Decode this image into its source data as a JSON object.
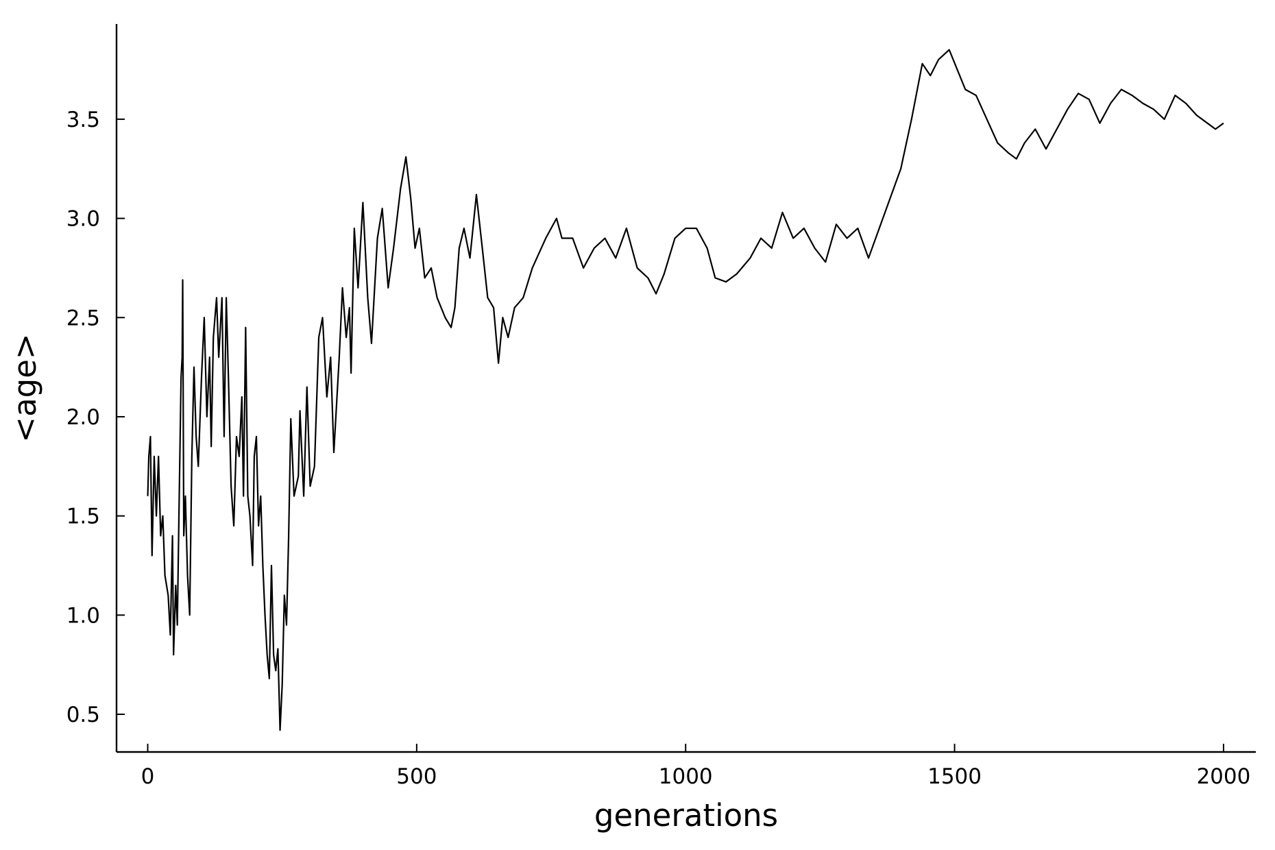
{
  "chart_data": {
    "type": "line",
    "xlabel": "generations",
    "ylabel": "<age>",
    "color": "#000000",
    "grid": false,
    "xlim": [
      -58,
      2060
    ],
    "ylim": [
      0.31,
      3.98
    ],
    "xticks": [
      0,
      500,
      1000,
      1500,
      2000
    ],
    "yticks": [
      0.5,
      {
        "value": 1,
        "label": "1.0"
      },
      1.5,
      {
        "value": 2,
        "label": "2.0"
      },
      2.5,
      {
        "value": 3,
        "label": "3.0"
      },
      3.5
    ],
    "x": [
      0,
      2,
      5,
      8,
      12,
      16,
      20,
      24,
      28,
      32,
      38,
      42,
      46,
      48,
      52,
      55,
      58,
      62,
      64,
      65,
      67,
      70,
      74,
      78,
      82,
      86,
      90,
      94,
      100,
      105,
      110,
      115,
      118,
      122,
      128,
      132,
      138,
      142,
      146,
      150,
      155,
      160,
      165,
      170,
      175,
      178,
      182,
      186,
      190,
      195,
      198,
      202,
      206,
      210,
      214,
      218,
      222,
      226,
      230,
      234,
      238,
      242,
      246,
      250,
      254,
      258,
      262,
      266,
      272,
      280,
      283,
      290,
      296,
      302,
      310,
      318,
      325,
      333,
      340,
      346,
      356,
      362,
      369,
      375,
      378,
      384,
      391,
      400,
      409,
      416,
      427,
      436,
      447,
      457,
      470,
      480,
      489,
      497,
      505,
      515,
      527,
      538,
      553,
      564,
      571,
      579,
      588,
      599,
      611,
      622,
      632,
      643,
      652,
      660,
      670,
      682,
      698,
      715,
      740,
      760,
      770,
      790,
      810,
      830,
      850,
      870,
      890,
      910,
      930,
      945,
      960,
      980,
      1000,
      1020,
      1040,
      1055,
      1075,
      1095,
      1120,
      1140,
      1160,
      1180,
      1200,
      1220,
      1240,
      1260,
      1280,
      1300,
      1320,
      1340,
      1360,
      1380,
      1400,
      1420,
      1440,
      1455,
      1470,
      1490,
      1505,
      1520,
      1540,
      1560,
      1580,
      1600,
      1615,
      1630,
      1650,
      1670,
      1690,
      1710,
      1730,
      1750,
      1770,
      1790,
      1810,
      1830,
      1850,
      1870,
      1890,
      1910,
      1930,
      1950,
      1970,
      1985,
      2000
    ],
    "values": [
      1.6,
      1.8,
      1.9,
      1.3,
      1.8,
      1.5,
      1.8,
      1.4,
      1.5,
      1.2,
      1.1,
      0.9,
      1.4,
      0.8,
      1.15,
      0.95,
      1.5,
      2.2,
      2.3,
      2.69,
      1.4,
      1.6,
      1.2,
      1.0,
      1.8,
      2.25,
      1.9,
      1.75,
      2.2,
      2.5,
      2.0,
      2.3,
      1.85,
      2.4,
      2.6,
      2.3,
      2.6,
      1.9,
      2.6,
      2.2,
      1.65,
      1.45,
      1.9,
      1.8,
      2.1,
      1.6,
      2.45,
      1.6,
      1.5,
      1.25,
      1.8,
      1.9,
      1.45,
      1.6,
      1.25,
      1.0,
      0.8,
      0.68,
      1.25,
      0.8,
      0.72,
      0.83,
      0.42,
      0.65,
      1.1,
      0.95,
      1.4,
      1.99,
      1.6,
      1.7,
      2.03,
      1.6,
      2.15,
      1.65,
      1.75,
      2.4,
      2.5,
      2.1,
      2.3,
      1.82,
      2.3,
      2.65,
      2.4,
      2.55,
      2.22,
      2.95,
      2.65,
      3.08,
      2.6,
      2.37,
      2.9,
      3.05,
      2.65,
      2.85,
      3.15,
      3.31,
      3.1,
      2.85,
      2.95,
      2.7,
      2.75,
      2.6,
      2.5,
      2.45,
      2.55,
      2.85,
      2.95,
      2.8,
      3.12,
      2.85,
      2.6,
      2.55,
      2.27,
      2.5,
      2.4,
      2.55,
      2.6,
      2.75,
      2.9,
      3.0,
      2.9,
      2.9,
      2.75,
      2.85,
      2.9,
      2.8,
      2.95,
      2.75,
      2.7,
      2.62,
      2.72,
      2.9,
      2.95,
      2.95,
      2.85,
      2.7,
      2.68,
      2.72,
      2.8,
      2.9,
      2.85,
      3.03,
      2.9,
      2.95,
      2.85,
      2.78,
      2.97,
      2.9,
      2.95,
      2.8,
      2.95,
      3.1,
      3.25,
      3.5,
      3.78,
      3.72,
      3.8,
      3.85,
      3.75,
      3.65,
      3.62,
      3.5,
      3.38,
      3.33,
      3.3,
      3.38,
      3.45,
      3.35,
      3.45,
      3.55,
      3.63,
      3.6,
      3.48,
      3.58,
      3.65,
      3.62,
      3.58,
      3.55,
      3.5,
      3.62,
      3.58,
      3.52,
      3.48,
      3.45,
      3.48
    ]
  }
}
